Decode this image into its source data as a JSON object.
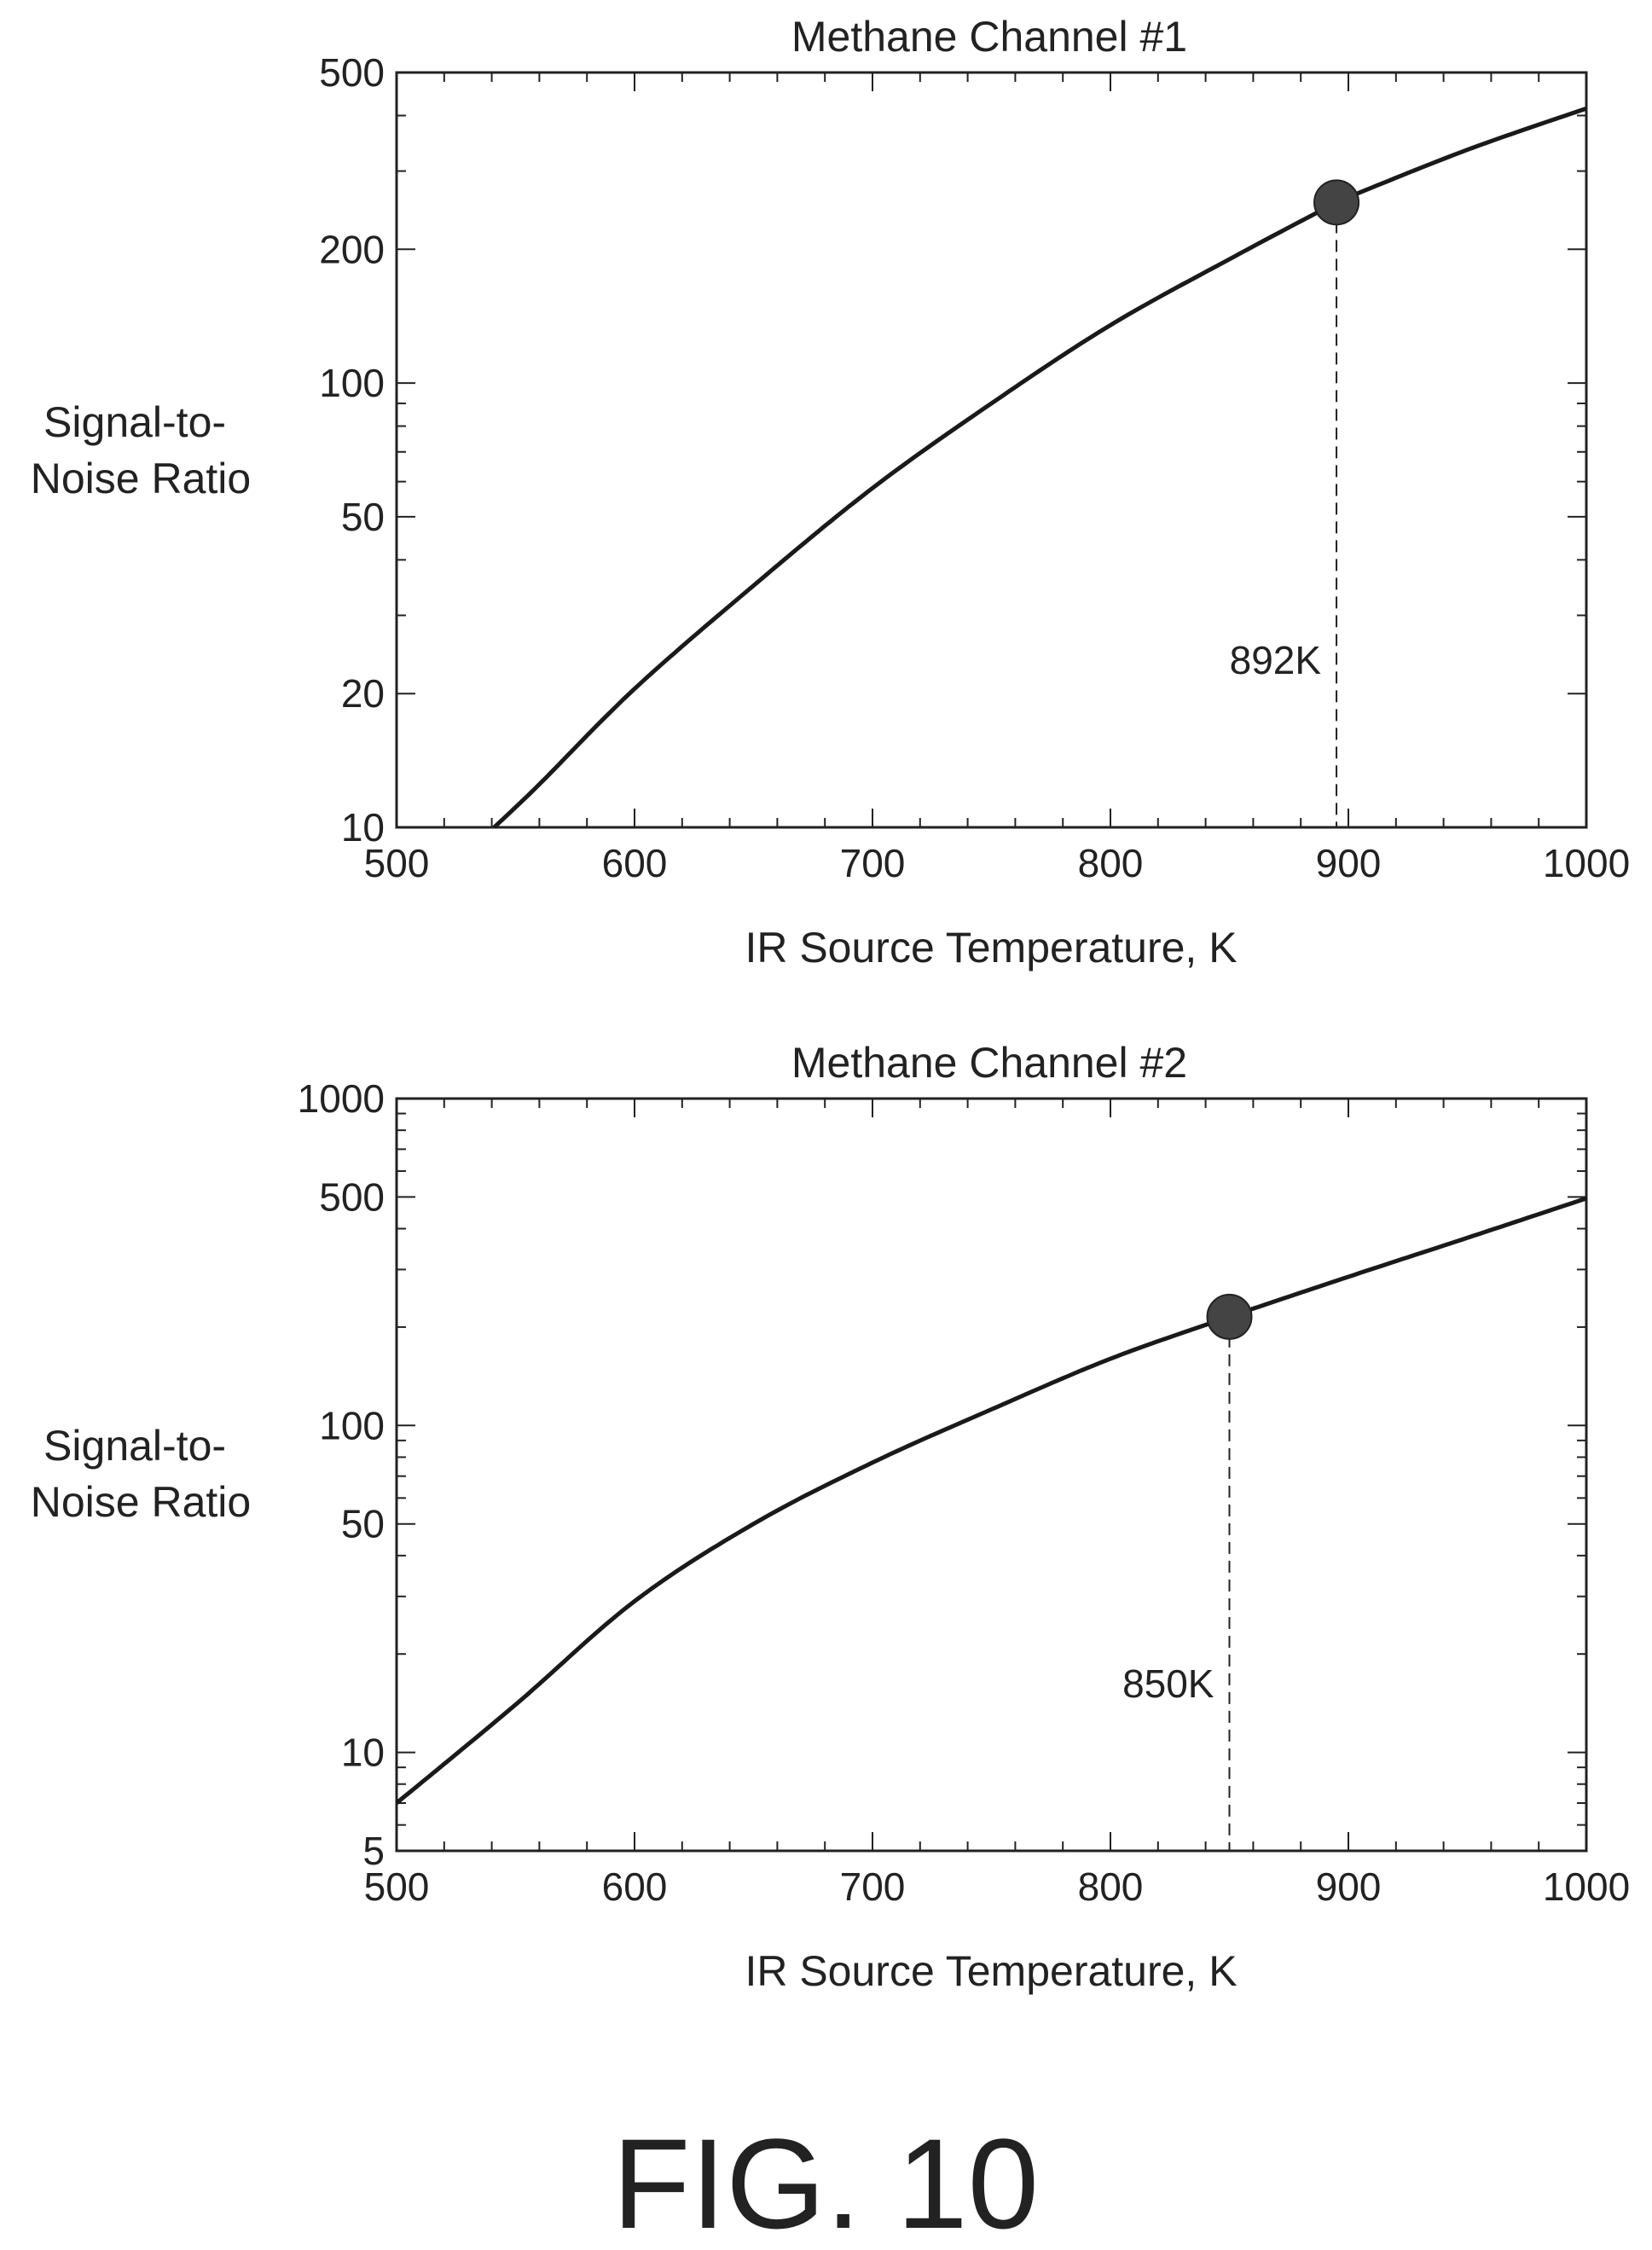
{
  "figure_label": "FIG. 10",
  "chart_data": [
    {
      "type": "line",
      "title": "Methane Channel #1",
      "xlabel": "IR Source Temperature, K",
      "ylabel_lines": [
        "Signal-to-",
        "Noise Ratio"
      ],
      "x_scale": "linear",
      "y_scale": "log",
      "xlim": [
        500,
        1000
      ],
      "ylim": [
        10,
        500
      ],
      "x_ticks": [
        500,
        600,
        700,
        800,
        900,
        1000
      ],
      "y_ticks": [
        10,
        20,
        50,
        100,
        200,
        500
      ],
      "grid": false,
      "series": [
        {
          "x": [
            541,
            560,
            600,
            650,
            700,
            750,
            800,
            850,
            892,
            900,
            950,
            1000
          ],
          "y": [
            10,
            12.5,
            20.5,
            35,
            58,
            90,
            135,
            190,
            250,
            262,
            335,
            415
          ]
        }
      ],
      "marker": {
        "x": 895,
        "y": 255
      },
      "annotation": "892K"
    },
    {
      "type": "line",
      "title": "Methane Channel #2",
      "xlabel": "IR Source Temperature, K",
      "ylabel_lines": [
        "Signal-to-",
        "Noise Ratio"
      ],
      "x_scale": "linear",
      "y_scale": "log",
      "xlim": [
        500,
        1000
      ],
      "ylim": [
        5,
        1000
      ],
      "x_ticks": [
        500,
        600,
        700,
        800,
        900,
        1000
      ],
      "y_ticks": [
        5,
        10,
        50,
        100,
        500,
        1000
      ],
      "grid": false,
      "series": [
        {
          "x": [
            500,
            550,
            600,
            650,
            700,
            750,
            800,
            850,
            900,
            950,
            1000
          ],
          "y": [
            7,
            14,
            29,
            50,
            77,
            112,
            160,
            215,
            285,
            375,
            495
          ]
        }
      ],
      "marker": {
        "x": 850,
        "y": 215
      },
      "annotation": "850K"
    }
  ]
}
